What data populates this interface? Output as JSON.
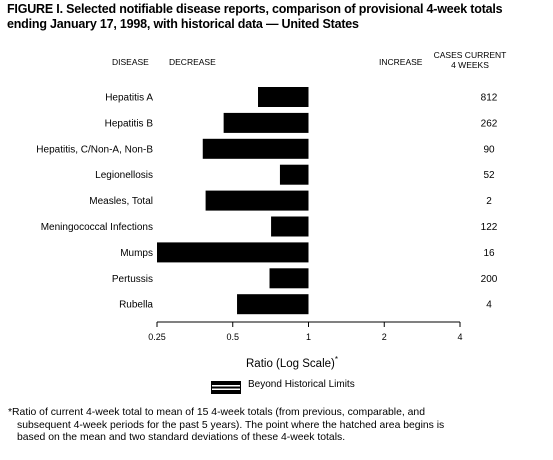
{
  "figure": {
    "title_line1": "FIGURE I. Selected notifiable disease reports, comparison of provisional 4-week totals",
    "title_line2": "ending January 17, 1998, with historical data — United States"
  },
  "headers": {
    "disease": "DISEASE",
    "decrease": "DECREASE",
    "increase": "INCREASE",
    "cases_line1": "CASES CURRENT",
    "cases_line2": "4 WEEKS"
  },
  "legend": {
    "label": "Beyond Historical Limits"
  },
  "footnote": {
    "line1": "*Ratio of current 4-week total to mean of 15 4-week totals (from previous, comparable, and",
    "line2": "subsequent 4-week periods for the past 5 years). The point where the hatched area begins is",
    "line3": "based on the mean and two standard deviations of these 4-week totals."
  },
  "chart_data": {
    "type": "bar",
    "orientation": "horizontal",
    "scale": "log2",
    "xlabel": "Ratio (Log Scale)",
    "xlabel_mark": "*",
    "xlim": [
      0.25,
      4
    ],
    "reference": 1,
    "ticks": [
      0.25,
      0.5,
      1,
      2,
      4
    ],
    "tick_labels": [
      "0.25",
      "0.5",
      "1",
      "2",
      "4"
    ],
    "categories": [
      "Hepatitis A",
      "Hepatitis B",
      "Hepatitis, C/Non-A, Non-B",
      "Legionellosis",
      "Measles, Total",
      "Meningococcal Infections",
      "Mumps",
      "Pertussis",
      "Rubella"
    ],
    "values": [
      0.63,
      0.46,
      0.38,
      0.77,
      0.39,
      0.71,
      0.25,
      0.7,
      0.52
    ],
    "cases": [
      "812",
      "262",
      "90",
      "52",
      "2",
      "122",
      "16",
      "200",
      "4"
    ],
    "bar_color": "#000000"
  }
}
